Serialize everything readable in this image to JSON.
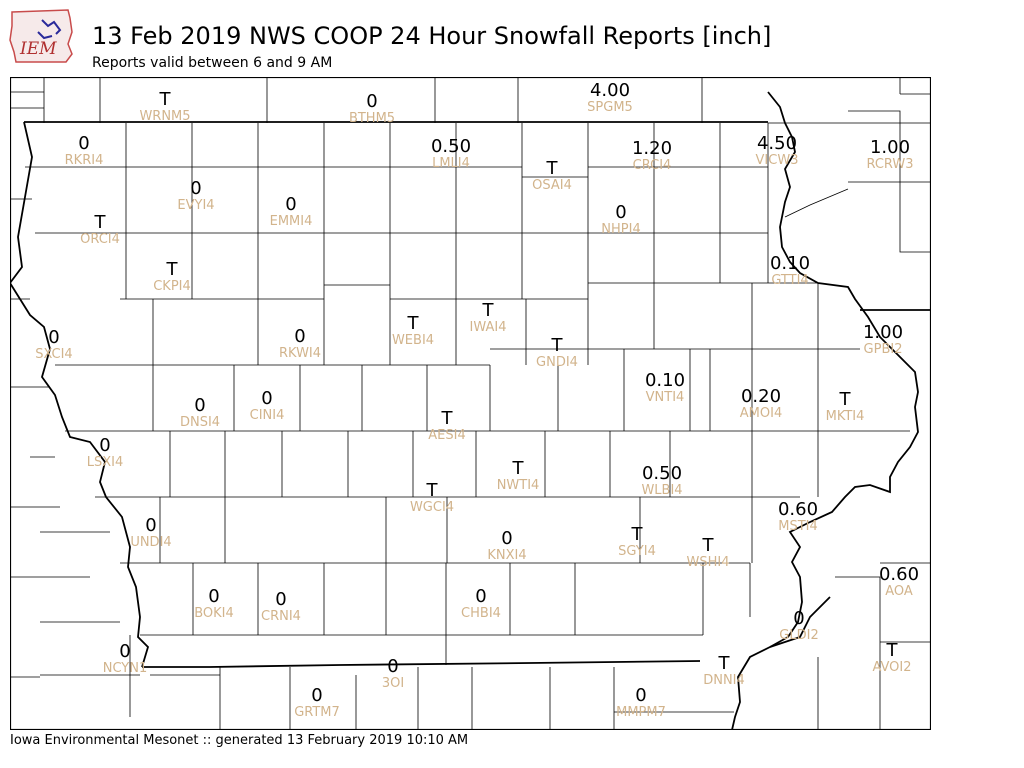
{
  "header": {
    "logo_text": "IEM",
    "title": "13 Feb 2019 NWS COOP 24 Hour Snowfall Reports [inch]",
    "subtitle": "Reports valid between 6 and 9 AM"
  },
  "footer": {
    "text": "Iowa Environmental Mesonet :: generated 13 February 2019 10:10 AM"
  },
  "colors": {
    "station_id": "#d2b48c",
    "value": "#000000",
    "logo_state": "#c84b4b",
    "logo_text": "#b03030"
  },
  "stations": [
    {
      "id": "WRNM5",
      "value": "T"
    },
    {
      "id": "BTHM5",
      "value": "0"
    },
    {
      "id": "SPGM5",
      "value": "4.00"
    },
    {
      "id": "RKRI4",
      "value": "0"
    },
    {
      "id": "LMLI4",
      "value": "0.50"
    },
    {
      "id": "OSAI4",
      "value": "T"
    },
    {
      "id": "CRCI4",
      "value": "1.20"
    },
    {
      "id": "VICW3",
      "value": "4.50"
    },
    {
      "id": "RCRW3",
      "value": "1.00"
    },
    {
      "id": "EVYI4",
      "value": "0"
    },
    {
      "id": "EMMI4",
      "value": "0"
    },
    {
      "id": "ORCI4",
      "value": "T"
    },
    {
      "id": "NHPI4",
      "value": "0"
    },
    {
      "id": "CKPI4",
      "value": "T"
    },
    {
      "id": "GTTI4",
      "value": "0.10"
    },
    {
      "id": "SXCI4",
      "value": "0"
    },
    {
      "id": "RKWI4",
      "value": "0"
    },
    {
      "id": "WEBI4",
      "value": "T"
    },
    {
      "id": "IWAI4",
      "value": "T"
    },
    {
      "id": "GNDI4",
      "value": "T"
    },
    {
      "id": "GPBI2",
      "value": "1.00"
    },
    {
      "id": "VNTI4",
      "value": "0.10"
    },
    {
      "id": "DNSI4",
      "value": "0"
    },
    {
      "id": "CINI4",
      "value": "0"
    },
    {
      "id": "AMOI4",
      "value": "0.20"
    },
    {
      "id": "MKTI4",
      "value": "T"
    },
    {
      "id": "AESI4",
      "value": "T"
    },
    {
      "id": "LSXI4",
      "value": "0"
    },
    {
      "id": "NWTI4",
      "value": "T"
    },
    {
      "id": "WLBI4",
      "value": "0.50"
    },
    {
      "id": "WGCI4",
      "value": "T"
    },
    {
      "id": "MSTI4",
      "value": "0.60"
    },
    {
      "id": "UNDI4",
      "value": "0"
    },
    {
      "id": "KNXI4",
      "value": "0"
    },
    {
      "id": "SGYI4",
      "value": "T"
    },
    {
      "id": "WSHI4",
      "value": "T"
    },
    {
      "id": "AOA",
      "value": "0.60"
    },
    {
      "id": "BOKI4",
      "value": "0"
    },
    {
      "id": "CRNI4",
      "value": "0"
    },
    {
      "id": "CHBI4",
      "value": "0"
    },
    {
      "id": "GLDI2",
      "value": "0"
    },
    {
      "id": "NCYN1",
      "value": "0"
    },
    {
      "id": "AVOI2",
      "value": "T"
    },
    {
      "id": "3OI",
      "value": "0"
    },
    {
      "id": "DNNI4",
      "value": "T"
    },
    {
      "id": "GRTM7",
      "value": "0"
    },
    {
      "id": "MMPM7",
      "value": "0"
    }
  ]
}
